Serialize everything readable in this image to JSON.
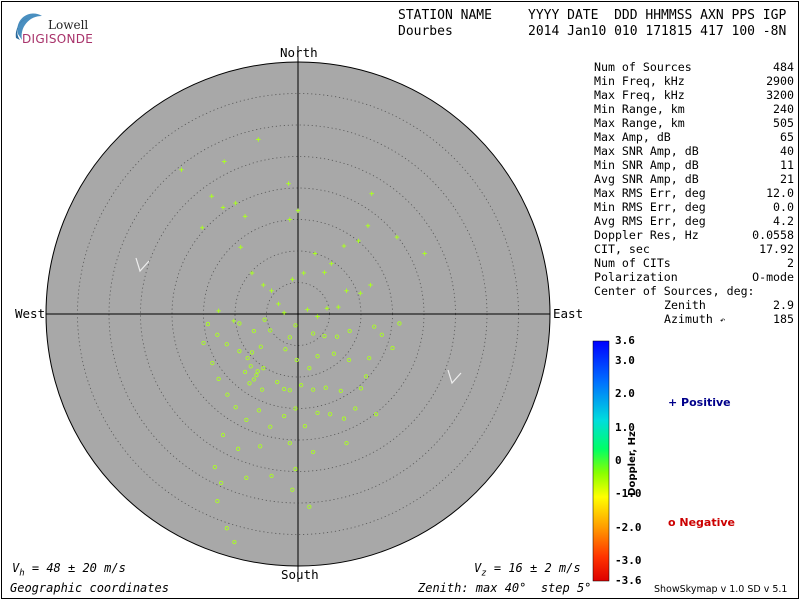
{
  "logo": {
    "line1": "Lowell",
    "line2": "DIGISONDE"
  },
  "header": {
    "station_label": "STATION NAME",
    "station_value": "Dourbes",
    "fields_label": "YYYY DATE  DDD HHMMSS AXN PPS IGP",
    "fields_value": "2014 Jan10 010 171815 417 100 -8N"
  },
  "stats": {
    "rows": [
      {
        "label": "Num of Sources",
        "value": "484"
      },
      {
        "label": "Min Freq, kHz",
        "value": "2900"
      },
      {
        "label": "Max Freq, kHz",
        "value": "3200"
      },
      {
        "label": "Min Range, km",
        "value": "240"
      },
      {
        "label": "Max Range, km",
        "value": "505"
      },
      {
        "label": "Max Amp, dB",
        "value": "65"
      },
      {
        "label": "Max SNR Amp, dB",
        "value": "40"
      },
      {
        "label": "Min SNR Amp, dB",
        "value": "11"
      },
      {
        "label": "Avg SNR Amp, dB",
        "value": "21"
      },
      {
        "label": "Max RMS Err, deg",
        "value": "12.0"
      },
      {
        "label": "Min RMS Err, deg",
        "value": "0.0"
      },
      {
        "label": "Avg RMS Err, deg",
        "value": "4.2"
      },
      {
        "label": "Doppler Res, Hz",
        "value": "0.0558"
      },
      {
        "label": "CIT, sec",
        "value": "17.92"
      },
      {
        "label": "Num of CITs",
        "value": "2"
      },
      {
        "label": "Polarization",
        "value": "O-mode"
      }
    ],
    "center_label": "Center of Sources, deg:",
    "zenith_label": "Zenith",
    "zenith_value": "2.9",
    "azimuth_label": "Azimuth",
    "azimuth_value": "185"
  },
  "directions": {
    "north": "North",
    "south": "South",
    "east": "East",
    "west": "West"
  },
  "footer": {
    "vh": "V",
    "vh_sub": "h",
    "vh_value": " = 48 ± 20 m/s",
    "vz": "V",
    "vz_sub": "z",
    "vz_value": " = 16 ± 2 m/s",
    "coords": "Geographic coordinates",
    "zenith_info": "Zenith: max 40°  step 5°",
    "version": "ShowSkymap v 1.0   SD v 5.1"
  },
  "legend": {
    "positive": "+ Positive",
    "negative": "o Negative",
    "colorbar_title": "Doppler, Hz",
    "ticks": [
      "3.6",
      "3.0",
      "2.0",
      "1.0",
      "0",
      "-1.0",
      "-2.0",
      "-3.0",
      "-3.6"
    ],
    "positive_color": "#00008b",
    "negative_color": "#cc0000"
  },
  "colors": {
    "plot_bg": "#a8a8a8",
    "marker": "#aaff22"
  },
  "chart_data": {
    "type": "scatter",
    "title": "",
    "projection": "polar skymap",
    "radial_axis": {
      "label": "Zenith",
      "max": 40,
      "step": 5,
      "unit": "deg"
    },
    "color_scale": {
      "label": "Doppler, Hz",
      "min": -3.6,
      "max": 3.6
    },
    "series": [
      {
        "name": "Positive",
        "marker": "+",
        "points_x_y_deg": [
          [
            -18.5,
            22.9
          ],
          [
            -11.7,
            24.2
          ],
          [
            -13.7,
            18.7
          ],
          [
            -11.9,
            16.9
          ],
          [
            -9.9,
            17.6
          ],
          [
            -6.3,
            27.7
          ],
          [
            -1.5,
            20.7
          ],
          [
            -8.4,
            15.5
          ],
          [
            0.0,
            16.4
          ],
          [
            -1.3,
            15.0
          ],
          [
            11.7,
            19.1
          ],
          [
            11.1,
            14.0
          ],
          [
            15.7,
            12.2
          ],
          [
            20.1,
            9.6
          ],
          [
            9.6,
            11.6
          ],
          [
            7.3,
            10.8
          ],
          [
            -7.3,
            6.5
          ],
          [
            -5.5,
            4.6
          ],
          [
            -4.2,
            3.7
          ],
          [
            -0.9,
            5.5
          ],
          [
            0.9,
            6.5
          ],
          [
            4.2,
            6.6
          ],
          [
            7.7,
            3.7
          ],
          [
            9.9,
            3.3
          ],
          [
            11.5,
            4.6
          ],
          [
            -3.1,
            1.6
          ],
          [
            -2.2,
            0.2
          ],
          [
            1.5,
            0.7
          ],
          [
            3.1,
            -0.4
          ],
          [
            4.6,
            0.9
          ],
          [
            6.4,
            1.1
          ],
          [
            -12.6,
            0.5
          ],
          [
            -10.2,
            -1.1
          ],
          [
            -15.2,
            13.7
          ],
          [
            -9.1,
            10.6
          ],
          [
            2.7,
            9.6
          ],
          [
            5.3,
            8.0
          ]
        ]
      },
      {
        "name": "Negative",
        "marker": "o",
        "points_x_y_deg": [
          [
            -12.8,
            -3.3
          ],
          [
            -11.3,
            -4.8
          ],
          [
            -9.3,
            -5.9
          ],
          [
            -8.0,
            -7.0
          ],
          [
            -7.3,
            -6.1
          ],
          [
            -5.9,
            -5.2
          ],
          [
            -6.4,
            -9.1
          ],
          [
            -7.7,
            -11.0
          ],
          [
            -5.7,
            -12.0
          ],
          [
            -3.3,
            -10.8
          ],
          [
            -2.2,
            -11.9
          ],
          [
            -1.3,
            -12.1
          ],
          [
            0.5,
            -11.3
          ],
          [
            2.4,
            -12.0
          ],
          [
            4.4,
            -11.7
          ],
          [
            6.8,
            -12.2
          ],
          [
            10.0,
            -11.8
          ],
          [
            10.8,
            -9.9
          ],
          [
            11.3,
            -7.0
          ],
          [
            8.1,
            -7.3
          ],
          [
            5.7,
            -6.3
          ],
          [
            3.1,
            -6.7
          ],
          [
            1.8,
            -8.6
          ],
          [
            -0.2,
            -7.3
          ],
          [
            -2.0,
            -5.6
          ],
          [
            -1.3,
            -3.7
          ],
          [
            -0.4,
            -1.8
          ],
          [
            2.4,
            -3.1
          ],
          [
            4.2,
            -3.5
          ],
          [
            6.2,
            -3.6
          ],
          [
            8.2,
            -2.7
          ],
          [
            12.1,
            -2.0
          ],
          [
            13.3,
            -3.3
          ],
          [
            15.0,
            -5.4
          ],
          [
            16.1,
            -1.5
          ],
          [
            -9.3,
            -1.5
          ],
          [
            -7.0,
            -2.7
          ],
          [
            -5.3,
            -0.9
          ],
          [
            -4.4,
            -2.6
          ],
          [
            -14.3,
            -1.6
          ],
          [
            -13.6,
            -7.8
          ],
          [
            -15.0,
            -4.6
          ],
          [
            -12.6,
            -10.3
          ],
          [
            -11.2,
            -12.8
          ],
          [
            -9.9,
            -14.8
          ],
          [
            -8.2,
            -16.8
          ],
          [
            -6.2,
            -15.3
          ],
          [
            -4.4,
            -17.9
          ],
          [
            -2.2,
            -16.2
          ],
          [
            -0.4,
            -15.0
          ],
          [
            1.1,
            -17.8
          ],
          [
            3.1,
            -15.7
          ],
          [
            5.1,
            -15.9
          ],
          [
            7.3,
            -16.6
          ],
          [
            9.1,
            -15.0
          ],
          [
            12.4,
            -15.9
          ],
          [
            -11.9,
            -19.2
          ],
          [
            -9.5,
            -21.4
          ],
          [
            -6.0,
            -21.0
          ],
          [
            -1.3,
            -20.5
          ],
          [
            2.4,
            -21.9
          ],
          [
            7.7,
            -20.5
          ],
          [
            -13.2,
            -24.3
          ],
          [
            -12.2,
            -26.8
          ],
          [
            -8.2,
            -26.0
          ],
          [
            -0.4,
            -24.6
          ],
          [
            -0.9,
            -27.9
          ],
          [
            1.8,
            -30.6
          ],
          [
            -12.8,
            -29.7
          ],
          [
            -11.3,
            -34.0
          ],
          [
            -10.1,
            -36.2
          ],
          [
            -4.2,
            -25.7
          ],
          [
            -7.5,
            -8.3
          ],
          [
            -6.6,
            -9.7
          ],
          [
            -8.4,
            -9.2
          ],
          [
            -7.0,
            -10.4
          ],
          [
            -5.5,
            -8.6
          ]
        ]
      }
    ]
  }
}
